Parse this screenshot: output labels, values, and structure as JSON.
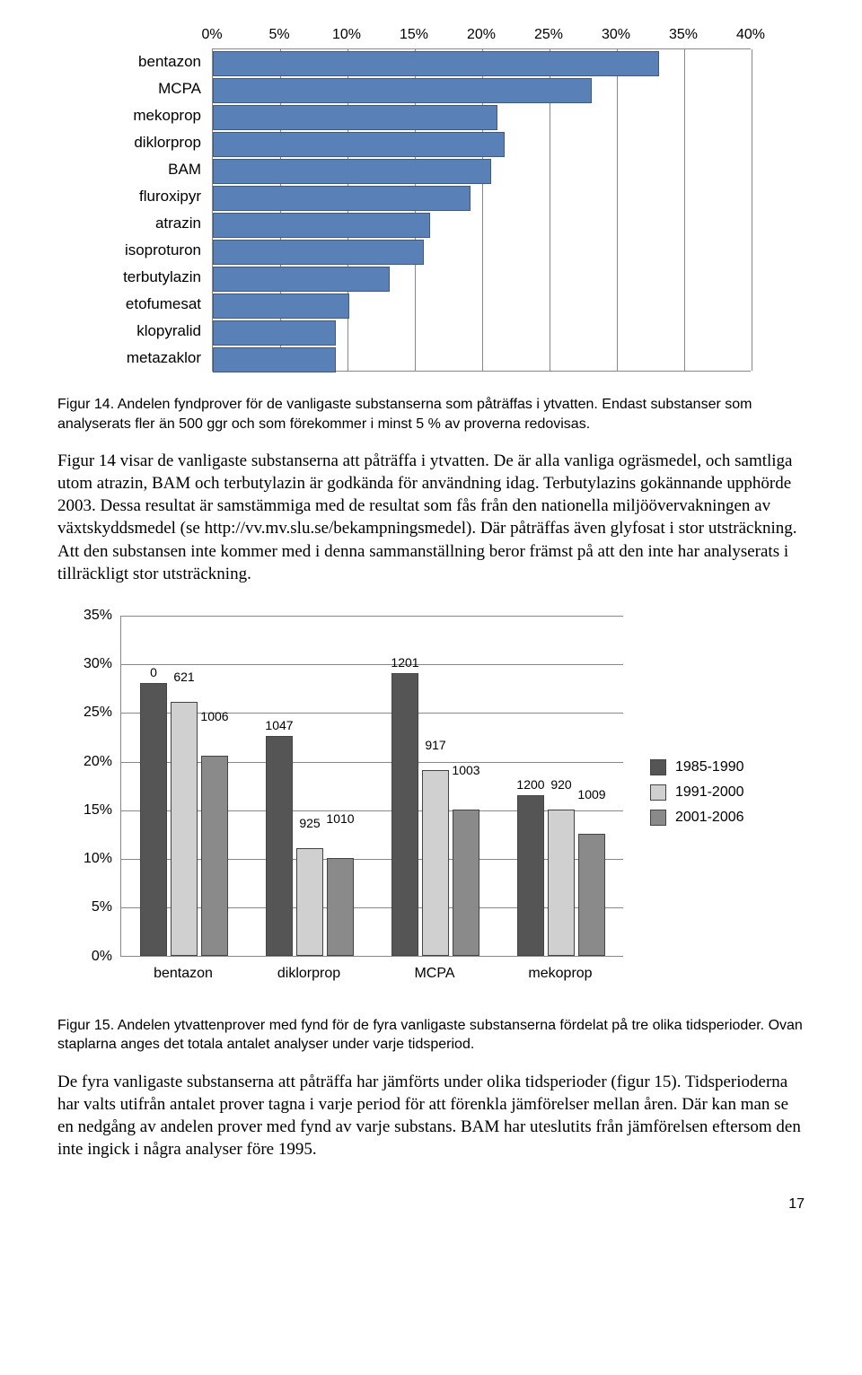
{
  "hbar_chart": {
    "type": "bar-horizontal",
    "x_max": 40,
    "x_tick_step": 5,
    "x_labels": [
      "0%",
      "5%",
      "10%",
      "15%",
      "20%",
      "25%",
      "30%",
      "35%",
      "40%"
    ],
    "bar_color": "#5a80b8",
    "bar_border": "#3f5a82",
    "grid_color": "#888888",
    "label_fontsize": 17,
    "categories": [
      {
        "label": "bentazon",
        "value": 33
      },
      {
        "label": "MCPA",
        "value": 28
      },
      {
        "label": "mekoprop",
        "value": 21
      },
      {
        "label": "diklorprop",
        "value": 21.5
      },
      {
        "label": "BAM",
        "value": 20.5
      },
      {
        "label": "fluroxipyr",
        "value": 19
      },
      {
        "label": "atrazin",
        "value": 16
      },
      {
        "label": "isoproturon",
        "value": 15.5
      },
      {
        "label": "terbutylazin",
        "value": 13
      },
      {
        "label": "etofumesat",
        "value": 10
      },
      {
        "label": "klopyralid",
        "value": 9
      },
      {
        "label": "metazaklor",
        "value": 9
      }
    ]
  },
  "caption14_a": "Figur 14. Andelen fyndprover för de vanligaste substanserna  som påträffas i ytvatten. Endast substanser som analyserats fler än 500 ggr och som förekommer i minst 5 % av proverna redovisas.",
  "para1": "Figur 14 visar de vanligaste substanserna att påträffa i ytvatten. De är alla vanliga ogräsmedel, och samtliga utom atrazin, BAM och terbutylazin är godkända för användning idag. Terbutylazins gokännande upphörde 2003. Dessa resultat är samstämmiga med de resultat som fås från den nationella miljöövervakningen av växtskyddsmedel (se http://vv.mv.slu.se/bekampningsmedel). Där påträffas även glyfosat i stor utsträckning. Att den substansen inte kommer med i denna sammanställning beror främst på att den inte har analyserats i tillräckligt stor utsträckning.",
  "vchart": {
    "type": "bar-grouped",
    "y_max": 35,
    "y_tick_step": 5,
    "y_labels": [
      "0%",
      "5%",
      "10%",
      "15%",
      "20%",
      "25%",
      "30%",
      "35%"
    ],
    "series": [
      {
        "name": "1985-1990",
        "color": "#555555"
      },
      {
        "name": "1991-2000",
        "color": "#d0d0d0"
      },
      {
        "name": "2001-2006",
        "color": "#8a8a8a"
      }
    ],
    "grid_color": "#888888",
    "categories": [
      "bentazon",
      "diklorprop",
      "MCPA",
      "mekoprop"
    ],
    "data": [
      {
        "cat": "bentazon",
        "vals": [
          28,
          26,
          20.5
        ],
        "labels": [
          "0",
          "621",
          "1006"
        ]
      },
      {
        "cat": "diklorprop",
        "vals": [
          22.5,
          11,
          10
        ],
        "labels": [
          "1047",
          "925",
          "1010"
        ]
      },
      {
        "cat": "MCPA",
        "vals": [
          29,
          19,
          15
        ],
        "labels": [
          "1201",
          "917",
          "1003"
        ]
      },
      {
        "cat": "mekoprop",
        "vals": [
          16.5,
          15,
          12.5
        ],
        "labels": [
          "1200",
          "920",
          "1009"
        ]
      }
    ]
  },
  "caption15": "Figur 15. Andelen ytvattenprover med fynd för de fyra vanligaste substanserna fördelat på tre olika tidsperioder. Ovan staplarna anges det totala antalet analyser under varje tidsperiod.",
  "para2": "De fyra vanligaste substanserna att påträffa har jämförts under olika tidsperioder (figur 15). Tidsperioderna har valts utifrån antalet prover tagna i varje period för att förenkla jämförelser mellan åren. Där kan man se en nedgång av andelen prover med fynd av varje substans. BAM har uteslutits från jämförelsen eftersom den inte ingick i några analyser före 1995.",
  "page_number": "17"
}
